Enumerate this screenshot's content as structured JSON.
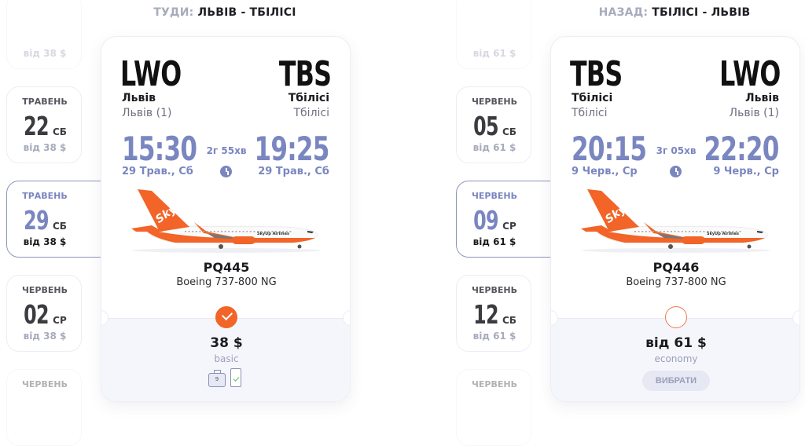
{
  "outbound": {
    "header_label": "ТУДИ:",
    "header_route": "ЛЬВІВ - ТБІЛІСІ",
    "dates": [
      {
        "month": "",
        "day": "",
        "weekday": "",
        "price": "від 38 $"
      },
      {
        "month": "ТРАВЕНЬ",
        "day": "22",
        "weekday": "СБ",
        "price": "від 38 $"
      },
      {
        "month": "ТРАВЕНЬ",
        "day": "29",
        "weekday": "СБ",
        "price": "від 38 $",
        "selected": true
      },
      {
        "month": "ЧЕРВЕНЬ",
        "day": "02",
        "weekday": "СР",
        "price": "від 38 $"
      },
      {
        "month": "ЧЕРВЕНЬ",
        "day": "",
        "weekday": "",
        "price": ""
      }
    ],
    "flight": {
      "from_code": "LWO",
      "from_city": "Львів",
      "from_airport": "Львів (1)",
      "to_code": "TBS",
      "to_city": "Тбілісі",
      "to_airport": "Тбілісі",
      "depart_time": "15:30",
      "depart_date": "29 Трав., Сб",
      "arrive_time": "19:25",
      "arrive_date": "29 Трав., Сб",
      "duration": "2г 55хв",
      "flight_number": "PQ445",
      "aircraft": "Boeing 737-800 NG",
      "selected": true,
      "price": "38 $",
      "fare_class": "basic",
      "baggage_kg": "9",
      "logo": "SkyUp Airlines"
    }
  },
  "return": {
    "header_label": "НАЗАД:",
    "header_route": "ТБІЛІСІ - ЛЬВІВ",
    "dates": [
      {
        "month": "",
        "day": "",
        "weekday": "",
        "price": "від 61 $"
      },
      {
        "month": "ЧЕРВЕНЬ",
        "day": "05",
        "weekday": "СБ",
        "price": "від 61 $"
      },
      {
        "month": "ЧЕРВЕНЬ",
        "day": "09",
        "weekday": "СР",
        "price": "від 61 $",
        "selected": true
      },
      {
        "month": "ЧЕРВЕНЬ",
        "day": "12",
        "weekday": "СБ",
        "price": "від 61 $"
      },
      {
        "month": "ЧЕРВЕНЬ",
        "day": "",
        "weekday": "",
        "price": ""
      }
    ],
    "flight": {
      "from_code": "TBS",
      "from_city": "Тбілісі",
      "from_airport": "Тбілісі",
      "to_code": "LWO",
      "to_city": "Львів",
      "to_airport": "Львів (1)",
      "depart_time": "20:15",
      "depart_date": "9 Черв., Ср",
      "arrive_time": "22:20",
      "arrive_date": "9 Черв., Ср",
      "duration": "3г 05хв",
      "flight_number": "PQ446",
      "aircraft": "Boeing 737-800 NG",
      "selected": false,
      "price": "від 61 $",
      "fare_class": "economy",
      "select_label": "ВИБРАТИ",
      "logo": "SkyUp Airlines"
    }
  },
  "colors": {
    "accent": "#f26427",
    "time": "#7a86c0",
    "muted": "#a7abbd"
  }
}
